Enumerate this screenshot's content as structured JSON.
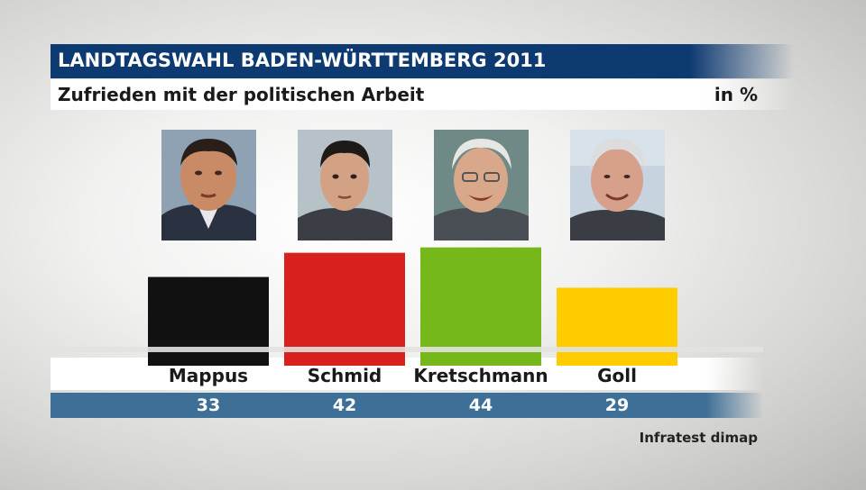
{
  "header": {
    "title": "LANDTAGSWAHL BADEN-WÜRTTEMBERG 2011",
    "subtitle": "Zufrieden mit der politischen Arbeit",
    "unit": "in %"
  },
  "source": "Infratest dimap",
  "colors": {
    "title_bar": "#0e3a72",
    "value_band": "#3e6f97"
  },
  "chart_data": {
    "type": "bar",
    "title": "Zufrieden mit der politischen Arbeit",
    "unit": "in %",
    "categories": [
      "Mappus",
      "Schmid",
      "Kretschmann",
      "Goll"
    ],
    "values": [
      33,
      42,
      44,
      29
    ],
    "bar_colors": [
      "#111111",
      "#d8201f",
      "#76b81b",
      "#ffcc00"
    ],
    "value_labels": [
      "33",
      "42",
      "44",
      "29"
    ],
    "ylim": [
      0,
      50
    ],
    "grid": false,
    "legend": "none"
  },
  "portraits": [
    {
      "person": "Mappus",
      "icon": "portrait-photo"
    },
    {
      "person": "Schmid",
      "icon": "portrait-photo"
    },
    {
      "person": "Kretschmann",
      "icon": "portrait-photo"
    },
    {
      "person": "Goll",
      "icon": "portrait-photo"
    }
  ]
}
